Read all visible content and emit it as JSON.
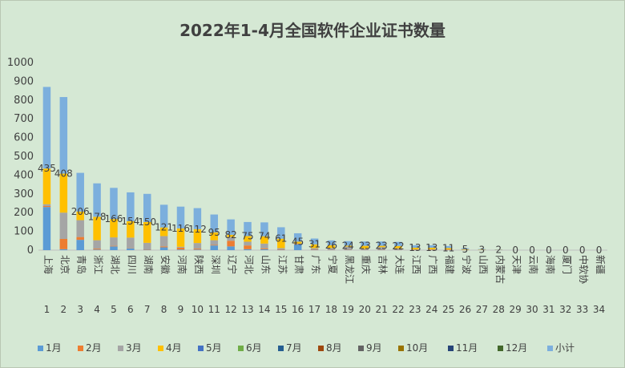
{
  "chart_data": {
    "type": "bar",
    "stacked": true,
    "title": "2022年1-4月全国软件企业证书数量",
    "ylim": [
      0,
      1000
    ],
    "yticks": [
      0,
      100,
      200,
      300,
      400,
      500,
      600,
      700,
      800,
      900,
      1000
    ],
    "grid": false,
    "legend_position": "bottom",
    "categories": [
      "上海",
      "北京",
      "青岛",
      "浙江",
      "湖北",
      "四川",
      "湖南",
      "安徽",
      "河南",
      "陕西",
      "深圳",
      "辽宁",
      "河北",
      "山东",
      "江苏",
      "甘肃",
      "广东",
      "宁夏",
      "黑龙江",
      "重庆",
      "吉林",
      "大连",
      "江西",
      "广西",
      "福建",
      "宁波",
      "山西",
      "内蒙古",
      "天津",
      "云南",
      "海南",
      "厦门",
      "中软协",
      "新疆"
    ],
    "index_labels": [
      "1",
      "2",
      "3",
      "4",
      "5",
      "6",
      "7",
      "8",
      "9",
      "10",
      "11",
      "12",
      "13",
      "14",
      "15",
      "16",
      "17",
      "18",
      "19",
      "20",
      "21",
      "22",
      "23",
      "24",
      "25",
      "26",
      "27",
      "28",
      "29",
      "30",
      "31",
      "32",
      "33",
      "34"
    ],
    "series": [
      {
        "name": "1月",
        "color": "#5b9bd5",
        "values": [
          230,
          5,
          55,
          3,
          20,
          10,
          2,
          15,
          3,
          3,
          25,
          20,
          5,
          5,
          2,
          30,
          2,
          2,
          2,
          2,
          2,
          2,
          0,
          0,
          0,
          0,
          0,
          0,
          0,
          0,
          0,
          0,
          0,
          0
        ]
      },
      {
        "name": "2月",
        "color": "#ed7d31",
        "values": [
          5,
          55,
          15,
          5,
          3,
          2,
          2,
          5,
          10,
          5,
          3,
          30,
          20,
          5,
          3,
          2,
          3,
          2,
          2,
          2,
          2,
          2,
          2,
          2,
          2,
          0,
          0,
          0,
          0,
          0,
          0,
          0,
          0,
          0
        ]
      },
      {
        "name": "3月",
        "color": "#a5a5a5",
        "values": [
          10,
          140,
          90,
          45,
          45,
          55,
          35,
          55,
          5,
          30,
          25,
          20,
          20,
          25,
          6,
          3,
          6,
          7,
          15,
          3,
          12,
          6,
          3,
          3,
          2,
          2,
          1,
          1,
          0,
          0,
          0,
          0,
          0,
          0
        ]
      },
      {
        "name": "4月",
        "color": "#ffc000",
        "values": [
          190,
          208,
          46,
          125,
          98,
          87,
          111,
          46,
          98,
          74,
          42,
          12,
          30,
          39,
          50,
          10,
          20,
          15,
          5,
          16,
          7,
          12,
          8,
          8,
          7,
          3,
          2,
          1,
          0,
          0,
          0,
          0,
          0,
          0
        ]
      },
      {
        "name": "5月",
        "color": "#4472c4",
        "values": [
          0,
          0,
          0,
          0,
          0,
          0,
          0,
          0,
          0,
          0,
          0,
          0,
          0,
          0,
          0,
          0,
          0,
          0,
          0,
          0,
          0,
          0,
          0,
          0,
          0,
          0,
          0,
          0,
          0,
          0,
          0,
          0,
          0,
          0
        ]
      },
      {
        "name": "6月",
        "color": "#70ad47",
        "values": [
          0,
          0,
          0,
          0,
          0,
          0,
          0,
          0,
          0,
          0,
          0,
          0,
          0,
          0,
          0,
          0,
          0,
          0,
          0,
          0,
          0,
          0,
          0,
          0,
          0,
          0,
          0,
          0,
          0,
          0,
          0,
          0,
          0,
          0
        ]
      },
      {
        "name": "7月",
        "color": "#255e91",
        "values": [
          0,
          0,
          0,
          0,
          0,
          0,
          0,
          0,
          0,
          0,
          0,
          0,
          0,
          0,
          0,
          0,
          0,
          0,
          0,
          0,
          0,
          0,
          0,
          0,
          0,
          0,
          0,
          0,
          0,
          0,
          0,
          0,
          0,
          0
        ]
      },
      {
        "name": "8月",
        "color": "#9e480e",
        "values": [
          0,
          0,
          0,
          0,
          0,
          0,
          0,
          0,
          0,
          0,
          0,
          0,
          0,
          0,
          0,
          0,
          0,
          0,
          0,
          0,
          0,
          0,
          0,
          0,
          0,
          0,
          0,
          0,
          0,
          0,
          0,
          0,
          0,
          0
        ]
      },
      {
        "name": "9月",
        "color": "#636363",
        "values": [
          0,
          0,
          0,
          0,
          0,
          0,
          0,
          0,
          0,
          0,
          0,
          0,
          0,
          0,
          0,
          0,
          0,
          0,
          0,
          0,
          0,
          0,
          0,
          0,
          0,
          0,
          0,
          0,
          0,
          0,
          0,
          0,
          0,
          0
        ]
      },
      {
        "name": "10月",
        "color": "#997300",
        "values": [
          0,
          0,
          0,
          0,
          0,
          0,
          0,
          0,
          0,
          0,
          0,
          0,
          0,
          0,
          0,
          0,
          0,
          0,
          0,
          0,
          0,
          0,
          0,
          0,
          0,
          0,
          0,
          0,
          0,
          0,
          0,
          0,
          0,
          0
        ]
      },
      {
        "name": "11月",
        "color": "#264478",
        "values": [
          0,
          0,
          0,
          0,
          0,
          0,
          0,
          0,
          0,
          0,
          0,
          0,
          0,
          0,
          0,
          0,
          0,
          0,
          0,
          0,
          0,
          0,
          0,
          0,
          0,
          0,
          0,
          0,
          0,
          0,
          0,
          0,
          0,
          0
        ]
      },
      {
        "name": "12月",
        "color": "#43682b",
        "values": [
          0,
          0,
          0,
          0,
          0,
          0,
          0,
          0,
          0,
          0,
          0,
          0,
          0,
          0,
          0,
          0,
          0,
          0,
          0,
          0,
          0,
          0,
          0,
          0,
          0,
          0,
          0,
          0,
          0,
          0,
          0,
          0,
          0,
          0
        ]
      },
      {
        "name": "小计",
        "color": "#7cafdd",
        "values": [
          435,
          408,
          206,
          178,
          166,
          154,
          150,
          121,
          116,
          112,
          95,
          82,
          75,
          74,
          61,
          45,
          31,
          26,
          24,
          23,
          23,
          22,
          13,
          13,
          11,
          5,
          3,
          2,
          0,
          0,
          0,
          0,
          0,
          0
        ],
        "labeled": true
      }
    ]
  }
}
